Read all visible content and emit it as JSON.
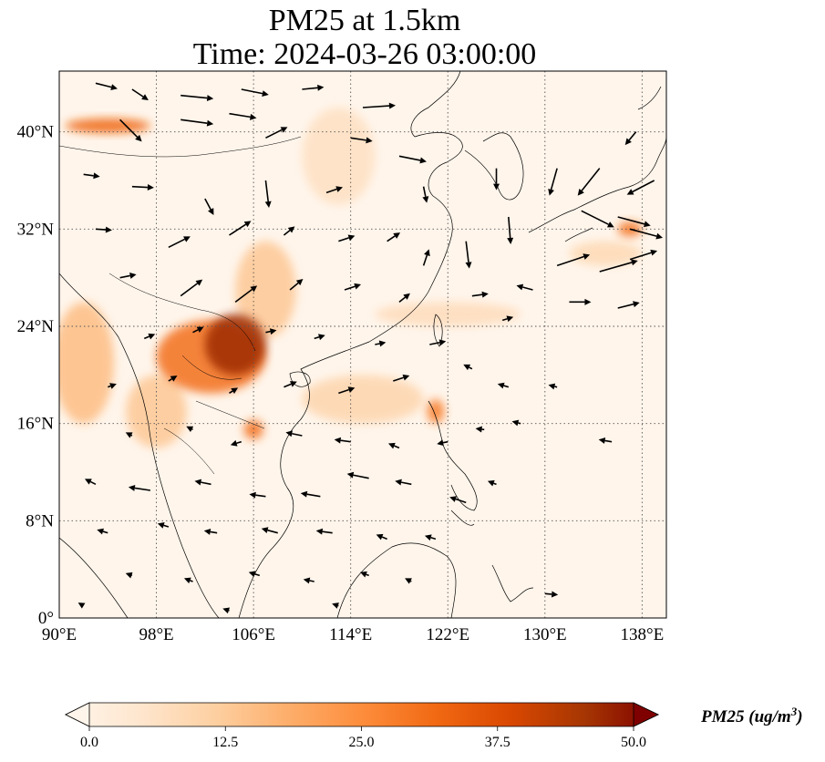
{
  "title": {
    "line1": "PM25 at 1.5km",
    "line2": "Time: 2024-03-26 03:00:00"
  },
  "map": {
    "lon_range": [
      90,
      140
    ],
    "lat_range": [
      0,
      45
    ],
    "lon_ticks": [
      {
        "value": 90,
        "label": "90°E"
      },
      {
        "value": 98,
        "label": "98°E"
      },
      {
        "value": 106,
        "label": "106°E"
      },
      {
        "value": 114,
        "label": "114°E"
      },
      {
        "value": 122,
        "label": "122°E"
      },
      {
        "value": 130,
        "label": "130°E"
      },
      {
        "value": 138,
        "label": "138°E"
      }
    ],
    "lat_ticks": [
      {
        "value": 0,
        "label": "0°"
      },
      {
        "value": 8,
        "label": "8°N"
      },
      {
        "value": 16,
        "label": "16°N"
      },
      {
        "value": 24,
        "label": "24°N"
      },
      {
        "value": 32,
        "label": "32°N"
      },
      {
        "value": 40,
        "label": "40°N"
      }
    ],
    "gridlines": "dotted",
    "colors": {
      "background": "#fff5eb",
      "low": "#fee6ce",
      "mid": "#fdae6b",
      "high": "#e6550d",
      "max": "#7f0000",
      "coast": "#000000",
      "arrow": "#000000"
    }
  },
  "colorbar": {
    "label_text": "PM25 (ug/m",
    "label_sup": "3",
    "label_close": ")",
    "min": 0,
    "max": 50,
    "ticks": [
      {
        "value": 0,
        "label": "0.0"
      },
      {
        "value": 12.5,
        "label": "12.5"
      },
      {
        "value": 25,
        "label": "25.0"
      },
      {
        "value": 37.5,
        "label": "37.5"
      },
      {
        "value": 50,
        "label": "50.0"
      }
    ],
    "extend": "both",
    "colormap": [
      "#fff5eb",
      "#fee6ce",
      "#fdd0a2",
      "#fdae6b",
      "#fd8d3c",
      "#f16913",
      "#d94801",
      "#a63603",
      "#7f0000"
    ]
  },
  "concentration_hotspots": [
    {
      "lon": 104.5,
      "lat": 22.5,
      "pm25": 45,
      "rlon": 2.5,
      "rlat": 2.5
    },
    {
      "lon": 102.5,
      "lat": 21.5,
      "pm25": 30,
      "rlon": 4.5,
      "rlat": 3.0
    },
    {
      "lon": 94.0,
      "lat": 40.5,
      "pm25": 32,
      "rlon": 3.5,
      "rlat": 0.6
    },
    {
      "lon": 106.0,
      "lat": 15.5,
      "pm25": 30,
      "rlon": 0.8,
      "rlat": 0.8
    },
    {
      "lon": 121.0,
      "lat": 17.0,
      "pm25": 28,
      "rlon": 0.7,
      "rlat": 1.0
    },
    {
      "lon": 137.0,
      "lat": 32.0,
      "pm25": 30,
      "rlon": 1.0,
      "rlat": 0.6
    },
    {
      "lon": 92.0,
      "lat": 21.0,
      "pm25": 16,
      "rlon": 2.5,
      "rlat": 5.0
    },
    {
      "lon": 107.0,
      "lat": 27.0,
      "pm25": 14,
      "rlon": 2.5,
      "rlat": 4.0
    },
    {
      "lon": 98.0,
      "lat": 17.0,
      "pm25": 14,
      "rlon": 2.5,
      "rlat": 3.0
    },
    {
      "lon": 115.0,
      "lat": 18.0,
      "pm25": 11,
      "rlon": 5.0,
      "rlat": 2.0
    },
    {
      "lon": 113.0,
      "lat": 38.0,
      "pm25": 8,
      "rlon": 3.0,
      "rlat": 4.0
    },
    {
      "lon": 122.0,
      "lat": 25.0,
      "pm25": 9,
      "rlon": 6.0,
      "rlat": 1.0
    },
    {
      "lon": 135.0,
      "lat": 30.0,
      "pm25": 10,
      "rlon": 3.0,
      "rlat": 1.0
    }
  ],
  "wind_vectors": [
    {
      "lon": 93.0,
      "lat": 44.0,
      "u": 2.0,
      "v": -0.5
    },
    {
      "lon": 96.0,
      "lat": 43.5,
      "u": 1.5,
      "v": -1.0
    },
    {
      "lon": 100.0,
      "lat": 43.0,
      "u": 3.0,
      "v": -0.3
    },
    {
      "lon": 105.0,
      "lat": 43.5,
      "u": 2.5,
      "v": -0.5
    },
    {
      "lon": 110.0,
      "lat": 43.5,
      "u": 2.0,
      "v": 0.2
    },
    {
      "lon": 115.0,
      "lat": 42.0,
      "u": 3.0,
      "v": 0.2
    },
    {
      "lon": 95.0,
      "lat": 41.0,
      "u": 2.0,
      "v": -2.0
    },
    {
      "lon": 100.0,
      "lat": 41.0,
      "u": 3.0,
      "v": -0.4
    },
    {
      "lon": 104.0,
      "lat": 41.5,
      "u": 2.5,
      "v": -0.4
    },
    {
      "lon": 107.0,
      "lat": 39.5,
      "u": 2.0,
      "v": 1.0
    },
    {
      "lon": 114.0,
      "lat": 39.5,
      "u": 2.0,
      "v": -0.3
    },
    {
      "lon": 118.0,
      "lat": 38.0,
      "u": 2.5,
      "v": -0.5
    },
    {
      "lon": 92.0,
      "lat": 36.5,
      "u": 1.5,
      "v": -0.2
    },
    {
      "lon": 96.0,
      "lat": 35.5,
      "u": 2.0,
      "v": -0.1
    },
    {
      "lon": 102.0,
      "lat": 34.5,
      "u": 0.8,
      "v": -1.5
    },
    {
      "lon": 107.0,
      "lat": 36.0,
      "u": 0.3,
      "v": -2.5
    },
    {
      "lon": 112.0,
      "lat": 35.0,
      "u": 1.5,
      "v": 0.5
    },
    {
      "lon": 120.0,
      "lat": 35.5,
      "u": 0.3,
      "v": -1.5
    },
    {
      "lon": 126.0,
      "lat": 37.0,
      "u": 0.0,
      "v": -2.0
    },
    {
      "lon": 131.0,
      "lat": 37.0,
      "u": -0.7,
      "v": -2.5
    },
    {
      "lon": 134.5,
      "lat": 37.0,
      "u": -2.0,
      "v": -2.5
    },
    {
      "lon": 137.5,
      "lat": 40.0,
      "u": -1.0,
      "v": -1.2
    },
    {
      "lon": 139.0,
      "lat": 36.0,
      "u": -2.5,
      "v": -1.3
    },
    {
      "lon": 133.0,
      "lat": 33.5,
      "u": 3.0,
      "v": -1.5
    },
    {
      "lon": 136.0,
      "lat": 33.0,
      "u": 3.0,
      "v": -0.8
    },
    {
      "lon": 137.0,
      "lat": 32.0,
      "u": 3.0,
      "v": -0.8
    },
    {
      "lon": 131.0,
      "lat": 29.0,
      "u": 3.0,
      "v": 1.0
    },
    {
      "lon": 134.5,
      "lat": 28.5,
      "u": 3.5,
      "v": 1.0
    },
    {
      "lon": 137.0,
      "lat": 29.5,
      "u": 2.5,
      "v": 0.8
    },
    {
      "lon": 127.0,
      "lat": 33.0,
      "u": 0.2,
      "v": -2.5
    },
    {
      "lon": 123.5,
      "lat": 31.0,
      "u": 0.3,
      "v": -2.5
    },
    {
      "lon": 129.0,
      "lat": 27.0,
      "u": -1.5,
      "v": 0.4
    },
    {
      "lon": 132.0,
      "lat": 26.0,
      "u": 2.0,
      "v": 0.0
    },
    {
      "lon": 136.0,
      "lat": 25.5,
      "u": 2.0,
      "v": 0.5
    },
    {
      "lon": 93.0,
      "lat": 32.0,
      "u": 1.5,
      "v": -0.1
    },
    {
      "lon": 99.0,
      "lat": 30.5,
      "u": 2.0,
      "v": 1.0
    },
    {
      "lon": 104.0,
      "lat": 31.5,
      "u": 2.0,
      "v": 1.3
    },
    {
      "lon": 108.5,
      "lat": 31.5,
      "u": 1.0,
      "v": 0.8
    },
    {
      "lon": 113.0,
      "lat": 31.0,
      "u": 1.5,
      "v": 0.5
    },
    {
      "lon": 117.0,
      "lat": 31.0,
      "u": 1.2,
      "v": 0.8
    },
    {
      "lon": 120.0,
      "lat": 29.0,
      "u": 0.5,
      "v": 1.5
    },
    {
      "lon": 95.0,
      "lat": 28.0,
      "u": 1.5,
      "v": 0.3
    },
    {
      "lon": 100.0,
      "lat": 26.5,
      "u": 2.0,
      "v": 1.5
    },
    {
      "lon": 104.5,
      "lat": 26.0,
      "u": 2.0,
      "v": 1.5
    },
    {
      "lon": 109.0,
      "lat": 27.0,
      "u": 1.2,
      "v": 1.0
    },
    {
      "lon": 113.5,
      "lat": 27.0,
      "u": 1.5,
      "v": 0.5
    },
    {
      "lon": 118.0,
      "lat": 26.0,
      "u": 1.0,
      "v": 0.8
    },
    {
      "lon": 124.0,
      "lat": 26.5,
      "u": 1.5,
      "v": 0.2
    },
    {
      "lon": 126.5,
      "lat": 24.5,
      "u": 1.0,
      "v": 0.3
    },
    {
      "lon": 97.0,
      "lat": 23.0,
      "u": 1.0,
      "v": 0.4
    },
    {
      "lon": 101.0,
      "lat": 23.5,
      "u": 1.0,
      "v": 0.5
    },
    {
      "lon": 107.0,
      "lat": 23.5,
      "u": 1.0,
      "v": 0.2
    },
    {
      "lon": 111.0,
      "lat": 23.0,
      "u": 1.0,
      "v": 0.3
    },
    {
      "lon": 116.0,
      "lat": 22.5,
      "u": 1.0,
      "v": 0.2
    },
    {
      "lon": 120.5,
      "lat": 22.5,
      "u": 1.5,
      "v": 0.3
    },
    {
      "lon": 94.0,
      "lat": 19.0,
      "u": 0.8,
      "v": 0.3
    },
    {
      "lon": 99.0,
      "lat": 19.5,
      "u": 0.8,
      "v": 0.5
    },
    {
      "lon": 104.0,
      "lat": 18.5,
      "u": 0.8,
      "v": 0.5
    },
    {
      "lon": 108.5,
      "lat": 19.0,
      "u": 1.2,
      "v": 0.5
    },
    {
      "lon": 113.0,
      "lat": 18.5,
      "u": 1.5,
      "v": 0.5
    },
    {
      "lon": 117.5,
      "lat": 19.5,
      "u": 1.5,
      "v": 0.5
    },
    {
      "lon": 124.0,
      "lat": 20.5,
      "u": -0.8,
      "v": 0.4
    },
    {
      "lon": 127.0,
      "lat": 19.0,
      "u": -1.0,
      "v": 0.3
    },
    {
      "lon": 131.0,
      "lat": 19.0,
      "u": -0.8,
      "v": 0.2
    },
    {
      "lon": 96.0,
      "lat": 15.0,
      "u": -0.6,
      "v": 0.3
    },
    {
      "lon": 101.0,
      "lat": 15.5,
      "u": -0.6,
      "v": 0.3
    },
    {
      "lon": 105.0,
      "lat": 14.5,
      "u": -1.0,
      "v": -0.3
    },
    {
      "lon": 110.0,
      "lat": 15.0,
      "u": -1.5,
      "v": 0.3
    },
    {
      "lon": 114.0,
      "lat": 14.5,
      "u": -1.5,
      "v": 0.2
    },
    {
      "lon": 118.0,
      "lat": 14.0,
      "u": -1.0,
      "v": 0.4
    },
    {
      "lon": 122.0,
      "lat": 14.5,
      "u": -1.0,
      "v": -0.2
    },
    {
      "lon": 125.0,
      "lat": 15.5,
      "u": -0.8,
      "v": 0.1
    },
    {
      "lon": 128.0,
      "lat": 16.0,
      "u": -0.8,
      "v": 0.2
    },
    {
      "lon": 135.5,
      "lat": 14.5,
      "u": -1.2,
      "v": 0.2
    },
    {
      "lon": 93.0,
      "lat": 11.0,
      "u": -1.0,
      "v": 0.5
    },
    {
      "lon": 97.5,
      "lat": 10.5,
      "u": -2.0,
      "v": 0.3
    },
    {
      "lon": 102.5,
      "lat": 11.0,
      "u": -1.5,
      "v": 0.3
    },
    {
      "lon": 107.0,
      "lat": 10.0,
      "u": -1.5,
      "v": 0.2
    },
    {
      "lon": 111.5,
      "lat": 10.0,
      "u": -1.8,
      "v": 0.3
    },
    {
      "lon": 115.5,
      "lat": 11.5,
      "u": -2.0,
      "v": 0.4
    },
    {
      "lon": 119.0,
      "lat": 11.0,
      "u": -1.5,
      "v": 0.3
    },
    {
      "lon": 123.5,
      "lat": 9.5,
      "u": -1.5,
      "v": 0.5
    },
    {
      "lon": 126.0,
      "lat": 11.0,
      "u": -0.8,
      "v": 0.3
    },
    {
      "lon": 94.0,
      "lat": 7.0,
      "u": -1.0,
      "v": 0.3
    },
    {
      "lon": 99.0,
      "lat": 7.5,
      "u": -1.0,
      "v": 0.3
    },
    {
      "lon": 103.0,
      "lat": 7.0,
      "u": -1.2,
      "v": 0.2
    },
    {
      "lon": 108.0,
      "lat": 7.0,
      "u": -1.5,
      "v": 0.4
    },
    {
      "lon": 112.5,
      "lat": 7.0,
      "u": -1.5,
      "v": 0.2
    },
    {
      "lon": 117.0,
      "lat": 6.5,
      "u": -1.0,
      "v": 0.4
    },
    {
      "lon": 121.0,
      "lat": 6.5,
      "u": -1.0,
      "v": 0.3
    },
    {
      "lon": 96.0,
      "lat": 3.5,
      "u": -0.6,
      "v": 0.2
    },
    {
      "lon": 101.0,
      "lat": 3.0,
      "u": -0.8,
      "v": 0.3
    },
    {
      "lon": 106.5,
      "lat": 3.5,
      "u": -1.0,
      "v": 0.3
    },
    {
      "lon": 111.0,
      "lat": 3.0,
      "u": -1.0,
      "v": 0.2
    },
    {
      "lon": 115.5,
      "lat": 3.5,
      "u": -0.8,
      "v": 0.3
    },
    {
      "lon": 119.0,
      "lat": 3.0,
      "u": -0.6,
      "v": 0.3
    },
    {
      "lon": 130.0,
      "lat": 2.0,
      "u": 1.2,
      "v": -0.1
    },
    {
      "lon": 92.0,
      "lat": 1.0,
      "u": -0.5,
      "v": 0.3
    },
    {
      "lon": 104.0,
      "lat": 0.6,
      "u": -0.6,
      "v": 0.2
    },
    {
      "lon": 113.0,
      "lat": 1.0,
      "u": -0.6,
      "v": 0.2
    }
  ]
}
